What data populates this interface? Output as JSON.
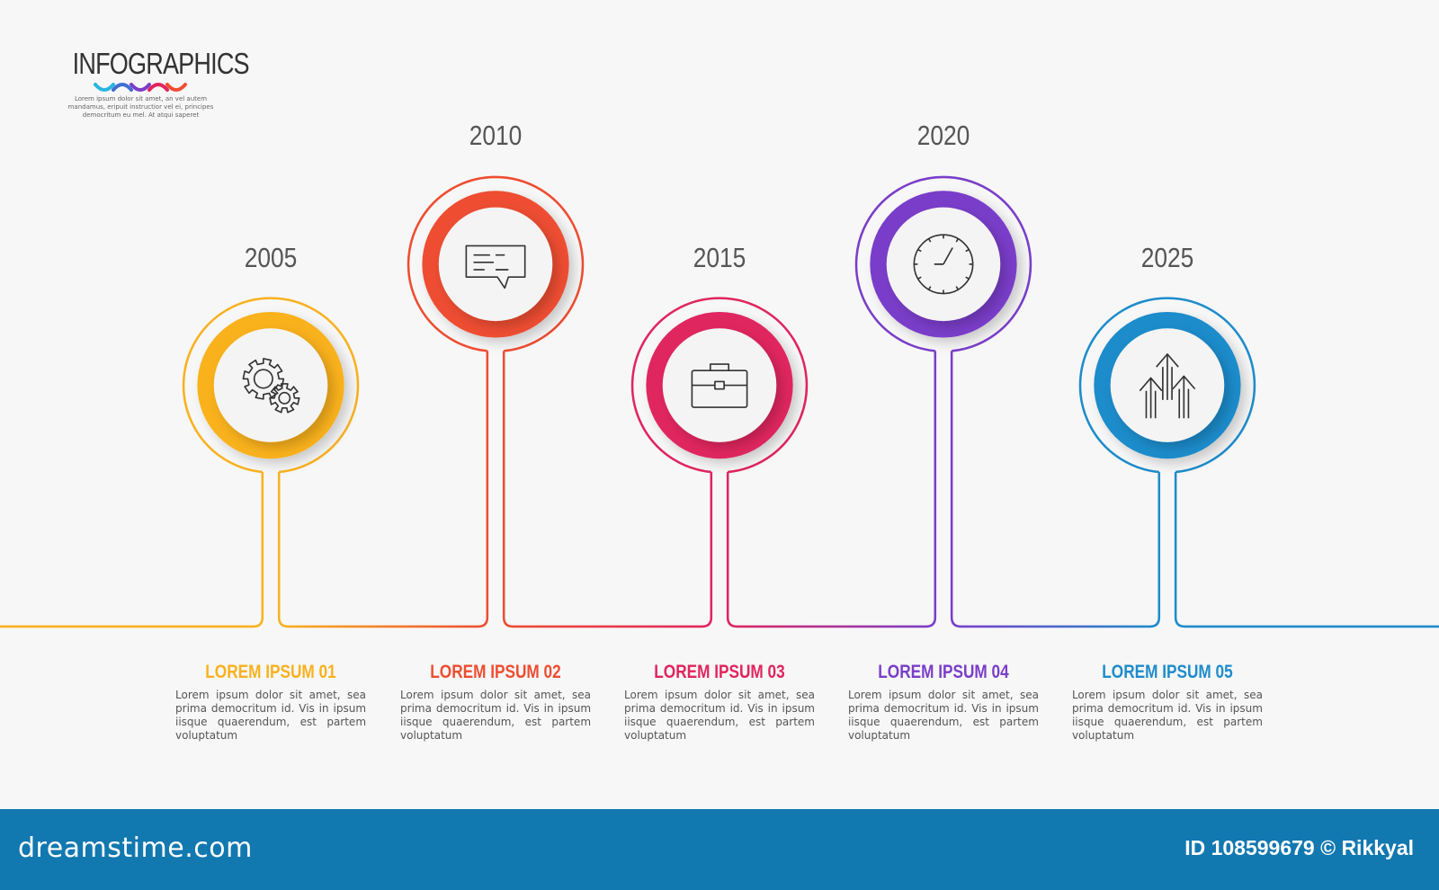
{
  "logo": {
    "title": "INFOGRAPHICS",
    "text": "Lorem ipsum dolor sit amet, an vel autem mandamus, eripuit instructior vel ei, principes democritum eu mel. At atqui saperet",
    "wave_colors": [
      "#29b6e0",
      "#3f6fd1",
      "#7a3ec9",
      "#e0255f",
      "#ef4e33"
    ]
  },
  "steps": [
    {
      "year": "2005",
      "title": "LOREM IPSUM 01",
      "text": "Lorem ipsum dolor sit amet, sea prima democritum id. Vis in ipsum iisque quaerendum, est partem voluptatum",
      "color": "#f9b11f",
      "icon": "gears-icon",
      "position": "low"
    },
    {
      "year": "2010",
      "title": "LOREM IPSUM 02",
      "text": "Lorem ipsum dolor sit amet, sea prima democritum id. Vis in ipsum iisque quaerendum, est partem voluptatum",
      "color": "#ee4d32",
      "icon": "chat-icon",
      "position": "high"
    },
    {
      "year": "2015",
      "title": "LOREM IPSUM 03",
      "text": "Lorem ipsum dolor sit amet, sea prima democritum id. Vis in ipsum iisque quaerendum, est partem voluptatum",
      "color": "#e0255f",
      "icon": "briefcase-icon",
      "position": "low"
    },
    {
      "year": "2020",
      "title": "LOREM IPSUM 04",
      "text": "Lorem ipsum dolor sit amet, sea prima democritum id. Vis in ipsum iisque quaerendum, est partem voluptatum",
      "color": "#7a3ec9",
      "icon": "clock-icon",
      "position": "high"
    },
    {
      "year": "2025",
      "title": "LOREM IPSUM 05",
      "text": "Lorem ipsum dolor sit amet, sea prima democritum id. Vis in ipsum iisque quaerendum, est partem voluptatum",
      "color": "#1e8ccb",
      "icon": "arrows-up-icon",
      "position": "low"
    }
  ],
  "footer": {
    "brand": "dreamstime.com",
    "credit": "ID 108599679 © Rikkyal",
    "color": "#1278b0"
  }
}
